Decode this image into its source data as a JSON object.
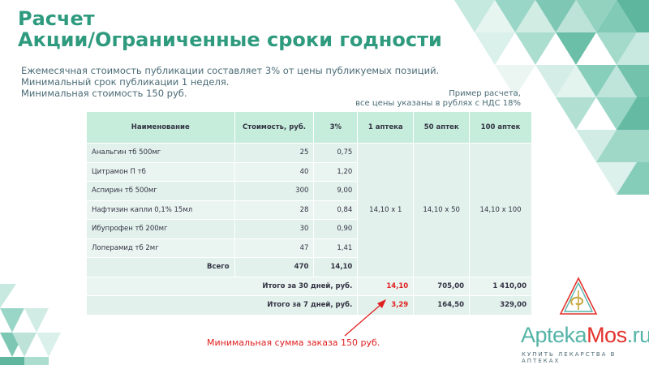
{
  "title": {
    "line1": "Расчет",
    "line2": "Акции/Ограниченные сроки годности"
  },
  "intro": {
    "line1": "Ежемесячная стоимость публикации составляет 3% от цены публикуемых позиций.",
    "line2": "Минимальный срок публикации 1 неделя.",
    "line3": "Минимальная стоимость 150 руб."
  },
  "note": {
    "line1": "Пример расчета,",
    "line2": "все цены указаны в рублях с НДС 18%"
  },
  "table": {
    "headers": [
      "Наименование",
      "Стоимость, руб.",
      "3%",
      "1 аптека",
      "50 аптек",
      "100 аптек"
    ],
    "rows": [
      {
        "name": "Анальгин тб 500мг",
        "cost": "25",
        "pct": "0,75"
      },
      {
        "name": "Цитрамон П тб",
        "cost": "40",
        "pct": "1,20"
      },
      {
        "name": "Аспирин тб 500мг",
        "cost": "300",
        "pct": "9,00"
      },
      {
        "name": "Нафтизин капли 0,1% 15мл",
        "cost": "28",
        "pct": "0,84"
      },
      {
        "name": "Ибупрофен тб 200мг",
        "cost": "30",
        "pct": "0,90"
      },
      {
        "name": "Лоперамид тб 2мг",
        "cost": "47",
        "pct": "1,41"
      }
    ],
    "merged": {
      "one": "14,10 х 1",
      "fifty": "14,10 х 50",
      "hundred": "14,10 х 100"
    },
    "total": {
      "label": "Всего",
      "cost": "470",
      "pct": "14,10"
    },
    "total30": {
      "label": "Итого за 30 дней, руб.",
      "one": "14,10",
      "fifty": "705,00",
      "hundred": "1 410,00"
    },
    "total7": {
      "label": "Итого за 7 дней, руб.",
      "one": "3,29",
      "fifty": "164,50",
      "hundred": "329,00"
    }
  },
  "min_order": "Минимальная сумма заказа  150 руб.",
  "logo": {
    "part1": "Apteka",
    "part2": "Mos",
    "part3": ".ru",
    "tagline": "КУПИТЬ ЛЕКАРСТВА В АПТЕКАХ"
  },
  "colors": {
    "accent": "#2e9a7e",
    "header_bg": "#c6eddb",
    "row_bg": "#eaf5f1",
    "red": "#e02020"
  }
}
